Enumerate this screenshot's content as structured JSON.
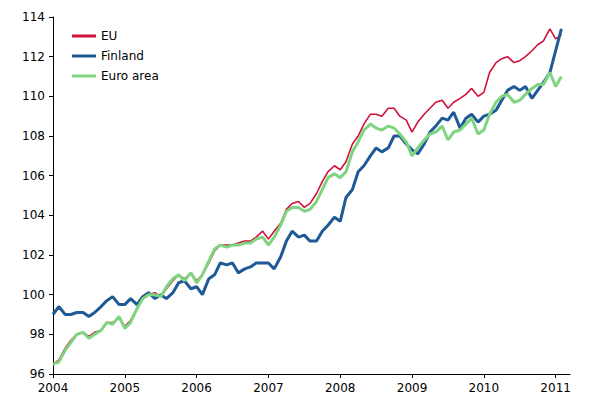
{
  "chart_data": {
    "type": "line",
    "x": [
      2004,
      2004.08,
      2004.17,
      2004.25,
      2004.33,
      2004.42,
      2004.5,
      2004.58,
      2004.67,
      2004.75,
      2004.83,
      2004.92,
      2005,
      2005.08,
      2005.17,
      2005.25,
      2005.33,
      2005.42,
      2005.5,
      2005.58,
      2005.67,
      2005.75,
      2005.83,
      2005.92,
      2006,
      2006.08,
      2006.17,
      2006.25,
      2006.33,
      2006.42,
      2006.5,
      2006.58,
      2006.67,
      2006.75,
      2006.83,
      2006.92,
      2007,
      2007.08,
      2007.17,
      2007.25,
      2007.33,
      2007.42,
      2007.5,
      2007.58,
      2007.67,
      2007.75,
      2007.83,
      2007.92,
      2008,
      2008.08,
      2008.17,
      2008.25,
      2008.33,
      2008.42,
      2008.5,
      2008.58,
      2008.67,
      2008.75,
      2008.83,
      2008.92,
      2009,
      2009.08,
      2009.17,
      2009.25,
      2009.33,
      2009.42,
      2009.5,
      2009.58,
      2009.67,
      2009.75,
      2009.83,
      2009.92,
      2010,
      2010.08,
      2010.17,
      2010.25,
      2010.33,
      2010.42,
      2010.5,
      2010.58,
      2010.67,
      2010.75,
      2010.83,
      2010.92,
      2011,
      2011.08
    ],
    "series": [
      {
        "name": "EU",
        "color": "#d0103a",
        "values": [
          96.5,
          96.7,
          97.3,
          97.7,
          98.0,
          98.1,
          97.9,
          98.1,
          98.2,
          98.6,
          98.6,
          98.8,
          98.4,
          98.7,
          99.3,
          99.8,
          100.0,
          100.1,
          99.9,
          100.3,
          100.7,
          101.0,
          100.8,
          101.1,
          100.7,
          101.0,
          101.6,
          102.2,
          102.5,
          102.5,
          102.5,
          102.6,
          102.7,
          102.7,
          102.9,
          103.2,
          102.8,
          103.2,
          103.6,
          104.3,
          104.6,
          104.7,
          104.4,
          104.6,
          105.1,
          105.7,
          106.2,
          106.5,
          106.3,
          106.7,
          107.6,
          108.0,
          108.6,
          109.1,
          109.1,
          109.0,
          109.4,
          109.4,
          109.0,
          108.8,
          108.2,
          108.7,
          109.1,
          109.4,
          109.7,
          109.8,
          109.4,
          109.7,
          109.9,
          110.1,
          110.4,
          110.0,
          110.2,
          111.2,
          111.7,
          111.9,
          112.0,
          111.7,
          111.8,
          112.0,
          112.3,
          112.6,
          112.8,
          113.4,
          112.9,
          113.1
        ]
      },
      {
        "name": "Finland",
        "color": "#1f5a96",
        "values": [
          99.0,
          99.4,
          99.0,
          99.0,
          99.1,
          99.1,
          98.9,
          99.1,
          99.4,
          99.7,
          99.9,
          99.5,
          99.5,
          99.8,
          99.5,
          99.9,
          100.1,
          99.8,
          100.0,
          99.8,
          100.1,
          100.6,
          100.7,
          100.3,
          100.4,
          100.0,
          100.8,
          101.0,
          101.6,
          101.5,
          101.6,
          101.1,
          101.3,
          101.4,
          101.6,
          101.6,
          101.6,
          101.3,
          101.9,
          102.7,
          103.2,
          102.9,
          103.0,
          102.7,
          102.7,
          103.2,
          103.5,
          103.9,
          103.7,
          104.9,
          105.3,
          106.2,
          106.5,
          107.0,
          107.4,
          107.2,
          107.4,
          108.0,
          108.0,
          107.6,
          107.3,
          107.1,
          107.6,
          108.2,
          108.5,
          108.9,
          108.8,
          109.2,
          108.4,
          108.9,
          109.1,
          108.7,
          109.0,
          109.1,
          109.3,
          109.8,
          110.3,
          110.5,
          110.3,
          110.5,
          109.9,
          110.3,
          110.7,
          111.2,
          112.3,
          113.4
        ]
      },
      {
        "name": "Euro area",
        "color": "#7fd47f",
        "values": [
          96.5,
          96.6,
          97.2,
          97.6,
          98.0,
          98.1,
          97.8,
          98.0,
          98.2,
          98.6,
          98.5,
          98.9,
          98.3,
          98.6,
          99.3,
          99.8,
          100.0,
          100.0,
          99.9,
          100.4,
          100.8,
          101.0,
          100.7,
          101.1,
          100.6,
          101.0,
          101.7,
          102.3,
          102.5,
          102.4,
          102.5,
          102.5,
          102.6,
          102.6,
          102.8,
          102.9,
          102.5,
          102.9,
          103.5,
          104.2,
          104.4,
          104.4,
          104.2,
          104.3,
          104.7,
          105.3,
          105.9,
          106.1,
          105.9,
          106.2,
          107.2,
          107.7,
          108.3,
          108.6,
          108.4,
          108.3,
          108.5,
          108.4,
          108.1,
          107.7,
          107.0,
          107.4,
          107.8,
          108.1,
          108.2,
          108.5,
          107.8,
          108.2,
          108.3,
          108.6,
          108.9,
          108.1,
          108.3,
          109.1,
          109.7,
          110.0,
          110.1,
          109.7,
          109.8,
          110.1,
          110.4,
          110.6,
          110.6,
          111.2,
          110.5,
          111.0
        ]
      }
    ],
    "xlim": [
      2004,
      2011.2
    ],
    "xticks": [
      2004,
      2005,
      2006,
      2007,
      2008,
      2009,
      2010,
      2011
    ],
    "ylim": [
      96,
      114
    ],
    "yticks": [
      96,
      98,
      100,
      102,
      104,
      106,
      108,
      110,
      112,
      114
    ],
    "grid": false,
    "legend": "upper left"
  }
}
